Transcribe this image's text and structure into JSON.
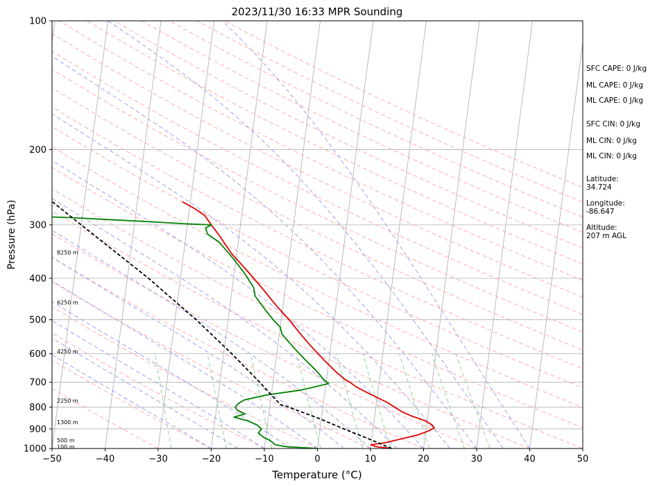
{
  "chart_data": {
    "type": "line",
    "title": "2023/11/30 16:33 MPR Sounding",
    "xlabel": "Temperature (°C)",
    "ylabel": "Pressure (hPa)",
    "xlim": [
      -50,
      50
    ],
    "ylim": [
      1000,
      100
    ],
    "y_scale": "log",
    "skew": true,
    "grid": true,
    "x_ticks": [
      -50,
      -40,
      -30,
      -20,
      -10,
      0,
      10,
      20,
      30,
      40,
      50
    ],
    "x_tick_labels": [
      "−50",
      "−40",
      "−30",
      "−20",
      "−10",
      "0",
      "10",
      "20",
      "30",
      "40",
      "50"
    ],
    "y_ticks": [
      1000,
      900,
      800,
      700,
      600,
      500,
      400,
      300,
      200,
      100
    ],
    "y_tick_labels": [
      "1000",
      "900",
      "800",
      "700",
      "600",
      "500",
      "400",
      "300",
      "200",
      "100"
    ],
    "series": [
      {
        "role": "temperature",
        "color": "#e00000",
        "points": [
          {
            "p": 1000,
            "t": 14.0
          },
          {
            "p": 990,
            "t": 11.0
          },
          {
            "p": 980,
            "t": 10.0
          },
          {
            "p": 970,
            "t": 12.5
          },
          {
            "p": 950,
            "t": 15.5
          },
          {
            "p": 930,
            "t": 18.5
          },
          {
            "p": 910,
            "t": 20.5
          },
          {
            "p": 895,
            "t": 21.5
          },
          {
            "p": 880,
            "t": 21.0
          },
          {
            "p": 860,
            "t": 19.5
          },
          {
            "p": 840,
            "t": 17.0
          },
          {
            "p": 820,
            "t": 15.0
          },
          {
            "p": 800,
            "t": 13.5
          },
          {
            "p": 780,
            "t": 12.0
          },
          {
            "p": 760,
            "t": 10.0
          },
          {
            "p": 740,
            "t": 8.0
          },
          {
            "p": 720,
            "t": 6.0
          },
          {
            "p": 700,
            "t": 4.5
          },
          {
            "p": 690,
            "t": 3.5
          },
          {
            "p": 660,
            "t": 1.5
          },
          {
            "p": 620,
            "t": -1.0
          },
          {
            "p": 580,
            "t": -3.5
          },
          {
            "p": 540,
            "t": -6.0
          },
          {
            "p": 500,
            "t": -8.5
          },
          {
            "p": 460,
            "t": -11.5
          },
          {
            "p": 420,
            "t": -14.5
          },
          {
            "p": 380,
            "t": -18.0
          },
          {
            "p": 350,
            "t": -21.0
          },
          {
            "p": 320,
            "t": -23.5
          },
          {
            "p": 300,
            "t": -25.5
          },
          {
            "p": 285,
            "t": -27.0
          },
          {
            "p": 275,
            "t": -29.0
          },
          {
            "p": 265,
            "t": -31.5
          }
        ]
      },
      {
        "role": "dewpoint",
        "color": "#008000",
        "points": [
          {
            "p": 1000,
            "t": 0.0
          },
          {
            "p": 990,
            "t": -6.0
          },
          {
            "p": 980,
            "t": -8.0
          },
          {
            "p": 960,
            "t": -9.0
          },
          {
            "p": 940,
            "t": -10.5
          },
          {
            "p": 920,
            "t": -11.5
          },
          {
            "p": 900,
            "t": -11.0
          },
          {
            "p": 880,
            "t": -12.0
          },
          {
            "p": 860,
            "t": -14.0
          },
          {
            "p": 845,
            "t": -16.5
          },
          {
            "p": 830,
            "t": -14.5
          },
          {
            "p": 815,
            "t": -16.0
          },
          {
            "p": 800,
            "t": -16.5
          },
          {
            "p": 785,
            "t": -16.0
          },
          {
            "p": 770,
            "t": -15.0
          },
          {
            "p": 750,
            "t": -11.0
          },
          {
            "p": 730,
            "t": -4.5
          },
          {
            "p": 705,
            "t": 0.5
          },
          {
            "p": 690,
            "t": -0.5
          },
          {
            "p": 660,
            "t": -2.0
          },
          {
            "p": 620,
            "t": -4.5
          },
          {
            "p": 580,
            "t": -7.0
          },
          {
            "p": 540,
            "t": -9.5
          },
          {
            "p": 520,
            "t": -10.0
          },
          {
            "p": 500,
            "t": -11.5
          },
          {
            "p": 470,
            "t": -13.5
          },
          {
            "p": 440,
            "t": -15.5
          },
          {
            "p": 420,
            "t": -16.0
          },
          {
            "p": 390,
            "t": -18.0
          },
          {
            "p": 360,
            "t": -20.5
          },
          {
            "p": 330,
            "t": -23.5
          },
          {
            "p": 315,
            "t": -26.0
          },
          {
            "p": 305,
            "t": -26.5
          },
          {
            "p": 300,
            "t": -25.5
          },
          {
            "p": 298,
            "t": -31.0
          },
          {
            "p": 295,
            "t": -37.0
          },
          {
            "p": 292,
            "t": -44.0
          },
          {
            "p": 289,
            "t": -51.0
          },
          {
            "p": 287,
            "t": -57.0
          }
        ]
      },
      {
        "role": "parcel",
        "color": "#000000",
        "dashed": true,
        "points": [
          {
            "p": 1000,
            "t": 14.0
          },
          {
            "p": 950,
            "t": 9.5
          },
          {
            "p": 900,
            "t": 4.5
          },
          {
            "p": 850,
            "t": -0.5
          },
          {
            "p": 800,
            "t": -6.5
          },
          {
            "p": 790,
            "t": -8.0
          },
          {
            "p": 750,
            "t": -10.0
          },
          {
            "p": 700,
            "t": -12.5
          },
          {
            "p": 600,
            "t": -18.5
          },
          {
            "p": 500,
            "t": -26.0
          },
          {
            "p": 400,
            "t": -36.0
          },
          {
            "p": 300,
            "t": -50.0
          },
          {
            "p": 265,
            "t": -56.0
          }
        ]
      }
    ],
    "background_lines": {
      "isotherm_color": "#aaaaaa",
      "dry_adiabat_color": "#ff9999",
      "moist_adiabat_color": "#9999ee",
      "mixing_ratio_color": "#88cc88"
    },
    "height_labels": [
      {
        "text": "100 m",
        "p": 991
      },
      {
        "text": "500 m",
        "p": 957
      },
      {
        "text": "1300 m",
        "p": 868
      },
      {
        "text": "2250 m",
        "p": 772
      },
      {
        "text": "4250 m",
        "p": 593
      },
      {
        "text": "6250 m",
        "p": 455
      },
      {
        "text": "8250 m",
        "p": 348
      }
    ],
    "side_info": [
      "SFC CAPE: 0 J/kg",
      "ML CAPE: 0 J/kg",
      "ML CAPE: 0 J/kg",
      "SFC CIN: 0 J/kg",
      "ML CIN: 0 J/kg",
      "ML CIN: 0 J/kg",
      "Latitude:",
      "34.724",
      "Longitude:",
      "-86.647",
      "Altitude:",
      "207 m AGL"
    ]
  }
}
